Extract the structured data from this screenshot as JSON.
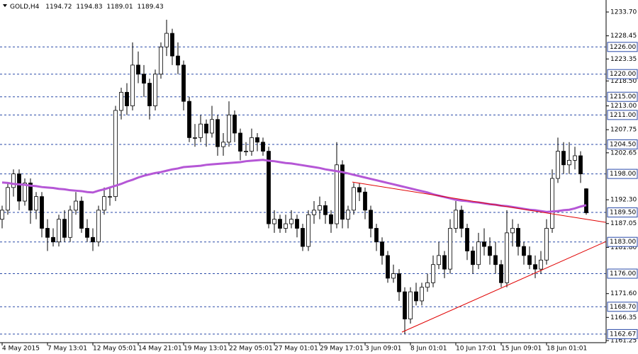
{
  "chart_data": {
    "type": "candlestick",
    "symbol": "GOLD,H4",
    "categories": [
      "4 May 2015",
      null,
      null,
      null,
      null,
      null,
      null,
      null,
      "7 May 13:01",
      null,
      null,
      null,
      null,
      null,
      null,
      null,
      "12 May 05:01",
      null,
      null,
      null,
      null,
      null,
      null,
      null,
      "14 May 21:01",
      null,
      null,
      null,
      null,
      null,
      null,
      null,
      "19 May 13:01",
      null,
      null,
      null,
      null,
      null,
      null,
      null,
      "22 May 05:01",
      null,
      null,
      null,
      null,
      null,
      null,
      null,
      "27 May 01:01",
      null,
      null,
      null,
      null,
      null,
      null,
      null,
      "29 May 17:01",
      null,
      null,
      null,
      null,
      null,
      null,
      null,
      "3 Jun 09:01",
      null,
      null,
      null,
      null,
      null,
      null,
      null,
      "8 Jun 01:01",
      null,
      null,
      null,
      null,
      null,
      null,
      null,
      "10 Jun 17:01",
      null,
      null,
      null,
      null,
      null,
      null,
      null,
      "15 Jun 09:01",
      null,
      null,
      null,
      null,
      null,
      null,
      null,
      "18 Jun 01:01",
      null,
      null,
      null,
      null,
      null,
      null,
      null
    ],
    "ohlc": [
      [
        1188,
        1191,
        1186,
        1190
      ],
      [
        1190,
        1196,
        1189,
        1195
      ],
      [
        1195,
        1199,
        1193,
        1198
      ],
      [
        1198,
        1199,
        1190,
        1192
      ],
      [
        1192,
        1197,
        1191,
        1196
      ],
      [
        1196,
        1197,
        1187,
        1190
      ],
      [
        1190,
        1194,
        1188,
        1193
      ],
      [
        1193,
        1194,
        1184,
        1186
      ],
      [
        1186,
        1188,
        1181,
        1184
      ],
      [
        1184,
        1186,
        1182,
        1183
      ],
      [
        1183,
        1189,
        1182,
        1188
      ],
      [
        1188,
        1190,
        1183,
        1184
      ],
      [
        1184,
        1191,
        1183,
        1190
      ],
      [
        1190,
        1194,
        1189,
        1192
      ],
      [
        1192,
        1193,
        1185,
        1186
      ],
      [
        1186,
        1188,
        1183,
        1184
      ],
      [
        1184,
        1186,
        1181,
        1183
      ],
      [
        1183,
        1191,
        1182,
        1190
      ],
      [
        1190,
        1195,
        1189,
        1193
      ],
      [
        1193,
        1195,
        1191,
        1193
      ],
      [
        1193,
        1213,
        1192,
        1212
      ],
      [
        1212,
        1217,
        1210,
        1216
      ],
      [
        1216,
        1218,
        1211,
        1213
      ],
      [
        1213,
        1227,
        1212,
        1222
      ],
      [
        1222,
        1225,
        1218,
        1220
      ],
      [
        1220,
        1222,
        1215,
        1218
      ],
      [
        1218,
        1219,
        1210,
        1213
      ],
      [
        1213,
        1221,
        1212,
        1220
      ],
      [
        1220,
        1227,
        1219,
        1226
      ],
      [
        1226,
        1232,
        1224,
        1229
      ],
      [
        1229,
        1230,
        1222,
        1224
      ],
      [
        1224,
        1227,
        1220,
        1222
      ],
      [
        1222,
        1223,
        1212,
        1214
      ],
      [
        1214,
        1215,
        1205,
        1206
      ],
      [
        1206,
        1209,
        1204,
        1206
      ],
      [
        1206,
        1211,
        1205,
        1209
      ],
      [
        1209,
        1210,
        1204,
        1207
      ],
      [
        1207,
        1213,
        1206,
        1210
      ],
      [
        1210,
        1211,
        1202,
        1204
      ],
      [
        1204,
        1207,
        1202,
        1205
      ],
      [
        1205,
        1214,
        1204,
        1211
      ],
      [
        1211,
        1212,
        1205,
        1207
      ],
      [
        1207,
        1208,
        1201,
        1203
      ],
      [
        1203,
        1205,
        1202,
        1203
      ],
      [
        1203,
        1208,
        1202,
        1206
      ],
      [
        1206,
        1207,
        1203,
        1205
      ],
      [
        1205,
        1206,
        1202,
        1203
      ],
      [
        1203,
        1204,
        1186,
        1187
      ],
      [
        1187,
        1190,
        1185,
        1188
      ],
      [
        1188,
        1189,
        1185,
        1186
      ],
      [
        1186,
        1189,
        1185,
        1187
      ],
      [
        1187,
        1190,
        1186,
        1188
      ],
      [
        1188,
        1189,
        1184,
        1186
      ],
      [
        1186,
        1187,
        1181,
        1182
      ],
      [
        1182,
        1190,
        1181,
        1189
      ],
      [
        1189,
        1192,
        1187,
        1190
      ],
      [
        1190,
        1193,
        1188,
        1191
      ],
      [
        1191,
        1192,
        1187,
        1189
      ],
      [
        1189,
        1190,
        1185,
        1187
      ],
      [
        1187,
        1205,
        1186,
        1200
      ],
      [
        1200,
        1201,
        1186,
        1188
      ],
      [
        1188,
        1191,
        1186,
        1190
      ],
      [
        1190,
        1196,
        1189,
        1195
      ],
      [
        1195,
        1196,
        1192,
        1194
      ],
      [
        1194,
        1195,
        1188,
        1190
      ],
      [
        1190,
        1191,
        1184,
        1186
      ],
      [
        1186,
        1187,
        1181,
        1183
      ],
      [
        1183,
        1184,
        1178,
        1180
      ],
      [
        1180,
        1181,
        1174,
        1175
      ],
      [
        1175,
        1178,
        1174,
        1176
      ],
      [
        1176,
        1177,
        1170,
        1172
      ],
      [
        1172,
        1173,
        1162.67,
        1166
      ],
      [
        1166,
        1173,
        1165,
        1172
      ],
      [
        1172,
        1174,
        1169,
        1170
      ],
      [
        1170,
        1174,
        1169,
        1173
      ],
      [
        1173,
        1176,
        1172,
        1174
      ],
      [
        1174,
        1180,
        1173,
        1178
      ],
      [
        1178,
        1183,
        1177,
        1180
      ],
      [
        1180,
        1181,
        1175,
        1177
      ],
      [
        1177,
        1188,
        1176,
        1186
      ],
      [
        1186,
        1192,
        1185,
        1190
      ],
      [
        1190,
        1191,
        1184,
        1186
      ],
      [
        1186,
        1187,
        1179,
        1181
      ],
      [
        1181,
        1182,
        1176,
        1178
      ],
      [
        1178,
        1185,
        1177,
        1183
      ],
      [
        1183,
        1186,
        1180,
        1182
      ],
      [
        1182,
        1184,
        1178,
        1180
      ],
      [
        1180,
        1183,
        1176,
        1178
      ],
      [
        1178,
        1179,
        1173,
        1174
      ],
      [
        1174,
        1190,
        1173,
        1185
      ],
      [
        1185,
        1188,
        1182,
        1186
      ],
      [
        1186,
        1187,
        1180,
        1182
      ],
      [
        1182,
        1183,
        1178,
        1180
      ],
      [
        1180,
        1182,
        1177,
        1178
      ],
      [
        1178,
        1180,
        1175,
        1177
      ],
      [
        1177,
        1181,
        1176,
        1179
      ],
      [
        1179,
        1188,
        1178,
        1186
      ],
      [
        1186,
        1199,
        1185,
        1197
      ],
      [
        1197,
        1206,
        1196,
        1203
      ],
      [
        1203,
        1205,
        1198,
        1200
      ],
      [
        1200,
        1205,
        1198,
        1201
      ],
      [
        1201,
        1204,
        1199,
        1202
      ],
      [
        1202,
        1203,
        1196,
        1198
      ],
      [
        1194.72,
        1194.83,
        1189.01,
        1189.43
      ]
    ],
    "up_color": "#ffffff",
    "down_color": "#000000",
    "ma": {
      "color": "#b557d6",
      "values": [
        1196.1,
        1196.0,
        1195.8,
        1195.7,
        1195.6,
        1195.4,
        1195.3,
        1195.1,
        1195.0,
        1194.9,
        1194.7,
        1194.6,
        1194.4,
        1194.3,
        1194.2,
        1194.0,
        1193.9,
        1194.3,
        1194.6,
        1195.0,
        1195.4,
        1195.8,
        1196.3,
        1196.7,
        1197.2,
        1197.6,
        1197.9,
        1198.2,
        1198.4,
        1198.7,
        1199.0,
        1199.2,
        1199.5,
        1199.6,
        1199.7,
        1199.8,
        1200.0,
        1200.1,
        1200.2,
        1200.3,
        1200.4,
        1200.5,
        1200.6,
        1200.8,
        1200.9,
        1201.0,
        1201.1,
        1200.9,
        1200.8,
        1200.6,
        1200.4,
        1200.3,
        1200.1,
        1199.9,
        1199.7,
        1199.5,
        1199.3,
        1199.0,
        1198.8,
        1198.6,
        1198.4,
        1198.1,
        1197.8,
        1197.5,
        1197.2,
        1196.9,
        1196.6,
        1196.3,
        1196.0,
        1195.7,
        1195.4,
        1195.1,
        1194.8,
        1194.5,
        1194.2,
        1193.9,
        1193.5,
        1193.2,
        1192.9,
        1192.6,
        1192.3,
        1192.1,
        1192.0,
        1191.8,
        1191.7,
        1191.5,
        1191.3,
        1191.2,
        1191.0,
        1190.9,
        1190.7,
        1190.5,
        1190.3,
        1190.1,
        1190.0,
        1189.8,
        1189.6,
        1189.7,
        1189.8,
        1190.0,
        1190.1,
        1190.4,
        1190.8,
        1191.1
      ]
    },
    "trendlines": [
      {
        "color": "#e00000",
        "from": [
          61.75,
          1196.2
        ],
        "to": [
          106.5,
          1187.3
        ]
      },
      {
        "color": "#e00000",
        "from": [
          70.5,
          1163.1
        ],
        "to": [
          106.5,
          1183.1
        ]
      }
    ],
    "levels_color": "#2a4aa8",
    "levels": [
      {
        "value": 1226,
        "label": "1226.00"
      },
      {
        "value": 1220,
        "label": "1220.00"
      },
      {
        "value": 1215,
        "label": "1215.00"
      },
      {
        "value": 1211,
        "label": "1211.00"
      },
      {
        "value": 1204.5,
        "label": "1204.50"
      },
      {
        "value": 1198,
        "label": "1198.00"
      },
      {
        "value": 1189.5,
        "label": "1189.50"
      },
      {
        "value": 1183,
        "label": "1183.00"
      },
      {
        "value": 1176,
        "label": "1176.00"
      },
      {
        "value": 1168.7,
        "label": "1168.70"
      },
      {
        "value": 1162.67,
        "label": "1162.67"
      }
    ],
    "ylim": [
      1160.78,
      1236.35
    ],
    "yticks": [
      {
        "value": 1233.7,
        "label": "1233.70"
      },
      {
        "value": 1228.45,
        "label": "1228.45"
      },
      {
        "value": 1223.35,
        "label": "1223.35"
      },
      {
        "value": 1218.5,
        "label": "1218.50"
      },
      {
        "value": 1213,
        "label": "1213.00"
      },
      {
        "value": 1207.75,
        "label": "1207.75"
      },
      {
        "value": 1202.65,
        "label": "1202.65"
      },
      {
        "value": 1192.3,
        "label": "1192.30"
      },
      {
        "value": 1187.05,
        "label": "1187.05"
      },
      {
        "value": 1181.8,
        "label": "1181.80"
      },
      {
        "value": 1171.6,
        "label": "1171.60"
      },
      {
        "value": 1166.35,
        "label": "1166.35"
      },
      {
        "value": 1161.25,
        "label": "1161.25"
      }
    ]
  }
}
